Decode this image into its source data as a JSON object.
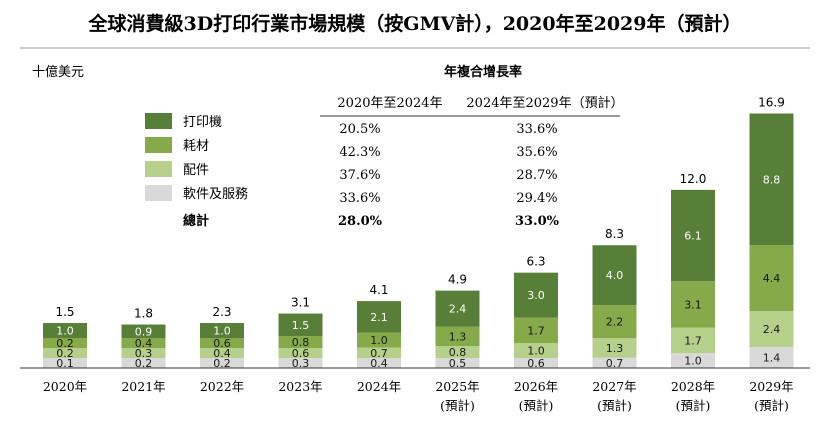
{
  "chart_data": {
    "type": "bar",
    "stacked": true,
    "title": "全球消費級3D打印行業市場規模（按GMV計），2020年至2029年（預計）",
    "unit_label": "十億美元",
    "categories": [
      "2020年",
      "2021年",
      "2022年",
      "2023年",
      "2024年",
      "2025年",
      "2026年",
      "2027年",
      "2028年",
      "2029年"
    ],
    "category_notes": [
      "",
      "",
      "",
      "",
      "",
      "(預計)",
      "(預計)",
      "(預計)",
      "(預計)",
      "(預計)"
    ],
    "series": [
      {
        "name": "軟件及服務",
        "color": "#d9d9d9",
        "values": [
          0.1,
          0.2,
          0.2,
          0.3,
          0.4,
          0.5,
          0.6,
          0.7,
          1.0,
          1.4
        ]
      },
      {
        "name": "配件",
        "color": "#b5d08b",
        "values": [
          0.2,
          0.3,
          0.4,
          0.6,
          0.7,
          0.8,
          1.0,
          1.3,
          1.7,
          2.4
        ]
      },
      {
        "name": "耗材",
        "color": "#86a94a",
        "values": [
          0.2,
          0.4,
          0.6,
          0.8,
          1.0,
          1.3,
          1.7,
          2.2,
          3.1,
          4.4
        ]
      },
      {
        "name": "打印機",
        "color": "#577f38",
        "values": [
          1.0,
          0.9,
          1.0,
          1.5,
          2.1,
          2.4,
          3.0,
          4.0,
          6.1,
          8.8
        ]
      }
    ],
    "totals": [
      1.5,
      1.8,
      2.3,
      3.1,
      4.1,
      4.9,
      6.3,
      8.3,
      12.0,
      16.9
    ],
    "legend_placement": "top-left",
    "grid": false,
    "ylim": [
      0,
      17.5
    ]
  },
  "cagr_table": {
    "heading": "年複合增長率",
    "col1_header": "2020年至2024年",
    "col2_header": "2024年至2029年（預計）",
    "rows": [
      {
        "label": "打印機",
        "c1": "20.5%",
        "c2": "33.6%"
      },
      {
        "label": "耗材",
        "c1": "42.3%",
        "c2": "35.6%"
      },
      {
        "label": "配件",
        "c1": "37.6%",
        "c2": "28.7%"
      },
      {
        "label": "軟件及服務",
        "c1": "33.6%",
        "c2": "29.4%"
      },
      {
        "label": "總計",
        "c1": "28.0%",
        "c2": "33.0%"
      }
    ]
  },
  "legend_colors": [
    "#577f38",
    "#86a94a",
    "#b5d08b",
    "#d9d9d9"
  ]
}
